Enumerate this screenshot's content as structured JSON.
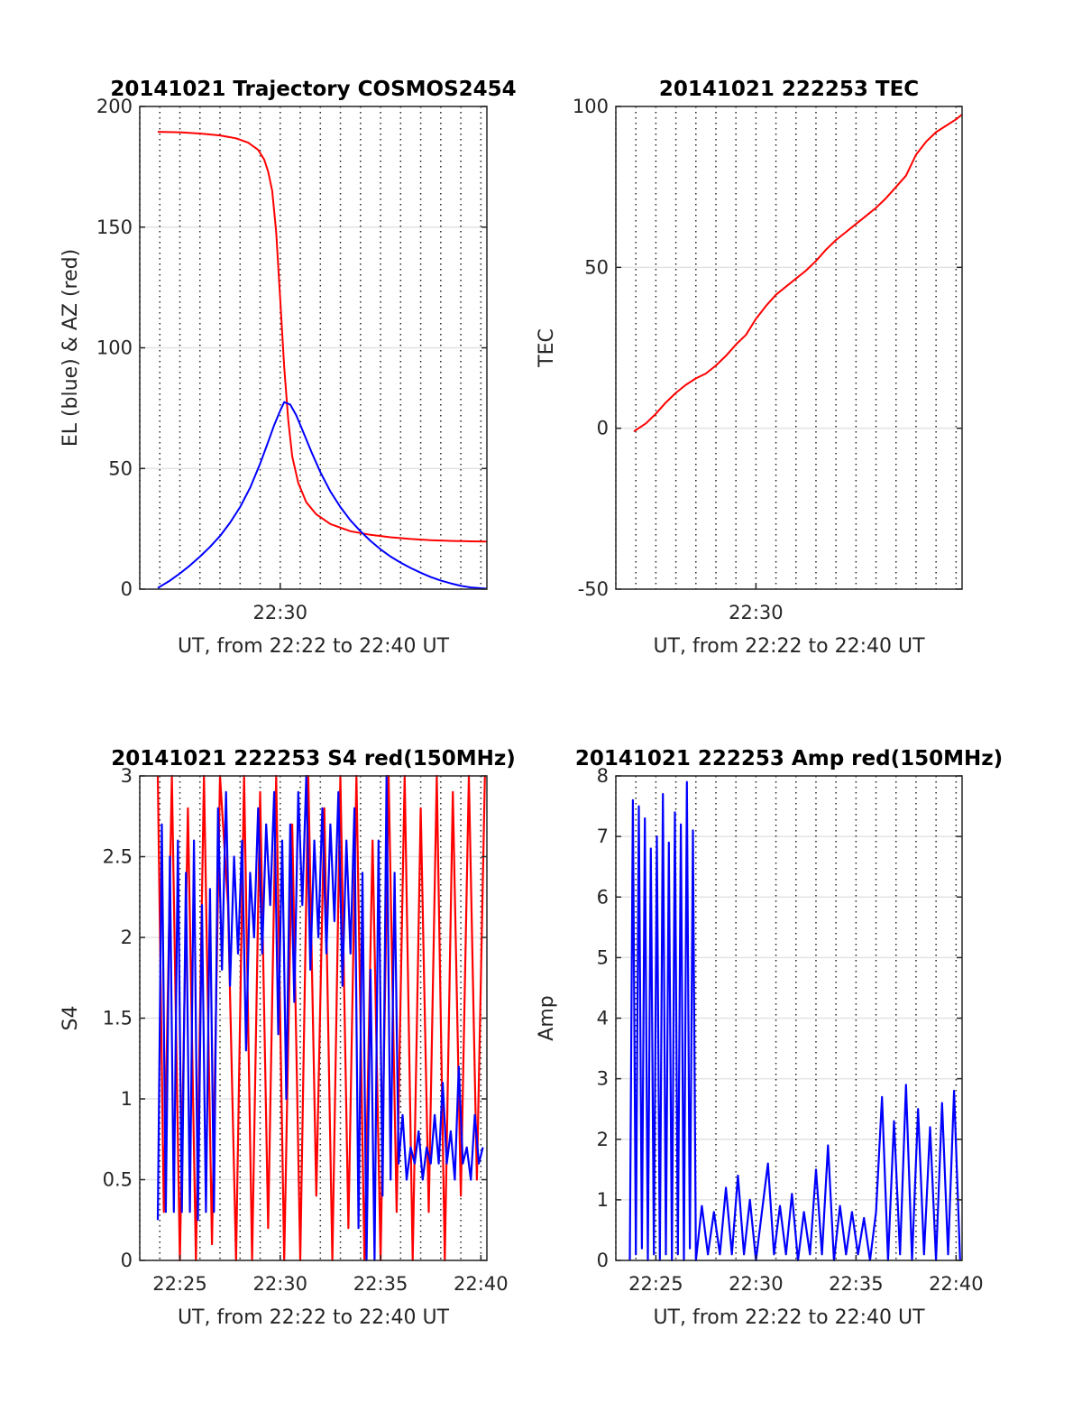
{
  "chart_data": [
    {
      "id": "trajectory",
      "type": "line",
      "title": "20141021 Trajectory COSMOS2454",
      "xlabel": "UT, from 22:22 to 22:40 UT",
      "ylabel": "EL (blue) & AZ (red)",
      "xlim_min": [
        1343.0,
        1360.3
      ],
      "ylim": [
        0,
        200
      ],
      "xticks": [
        {
          "value": 1350,
          "label": "22:30"
        }
      ],
      "yticks": [
        {
          "value": 0,
          "label": "0"
        },
        {
          "value": 50,
          "label": "50"
        },
        {
          "value": 100,
          "label": "100"
        },
        {
          "value": 150,
          "label": "150"
        },
        {
          "value": 200,
          "label": "200"
        }
      ],
      "grid": true,
      "series": [
        {
          "color": "#ff0000",
          "x": [
            1343.9,
            1345.0,
            1346.0,
            1347.0,
            1347.8,
            1348.4,
            1348.9,
            1349.2,
            1349.4,
            1349.6,
            1349.8,
            1350.0,
            1350.2,
            1350.4,
            1350.6,
            1350.9,
            1351.3,
            1351.8,
            1352.5,
            1353.5,
            1354.5,
            1355.5,
            1356.5,
            1357.5,
            1358.5,
            1359.5,
            1360.3
          ],
          "y": [
            189.5,
            189.3,
            188.8,
            188.0,
            186.8,
            185.0,
            182.0,
            178.0,
            173.0,
            165.0,
            148.0,
            120.0,
            92.0,
            70.0,
            55.0,
            44.0,
            36.0,
            31.0,
            27.0,
            24.0,
            22.5,
            21.5,
            20.8,
            20.3,
            20.0,
            19.8,
            19.7
          ]
        },
        {
          "color": "#0000ff",
          "x": [
            1343.9,
            1344.5,
            1345.0,
            1345.5,
            1346.0,
            1346.5,
            1347.0,
            1347.5,
            1348.0,
            1348.5,
            1349.0,
            1349.4,
            1349.7,
            1350.0,
            1350.2,
            1350.5,
            1350.8,
            1351.2,
            1351.6,
            1352.0,
            1352.5,
            1353.0,
            1353.5,
            1354.0,
            1354.5,
            1355.0,
            1355.5,
            1356.0,
            1356.5,
            1357.0,
            1357.5,
            1358.0,
            1358.5,
            1359.0,
            1359.5,
            1360.3
          ],
          "y": [
            0.5,
            3.5,
            6.5,
            9.8,
            13.5,
            17.5,
            22.0,
            27.5,
            34.0,
            42.0,
            52.0,
            61.0,
            68.0,
            74.0,
            77.5,
            76.5,
            72.0,
            64.0,
            56.0,
            48.5,
            40.5,
            34.0,
            28.5,
            24.0,
            20.0,
            16.5,
            13.5,
            11.0,
            8.8,
            6.8,
            5.0,
            3.6,
            2.4,
            1.4,
            0.7,
            0.2
          ]
        }
      ]
    },
    {
      "id": "tec",
      "type": "line",
      "title": "20141021 222253 TEC",
      "xlabel": "UT, from 22:22 to 22:40 UT",
      "ylabel": "TEC",
      "xlim_min": [
        1343.0,
        1360.3
      ],
      "ylim": [
        -50,
        100
      ],
      "xticks": [
        {
          "value": 1350,
          "label": "22:30"
        }
      ],
      "yticks": [
        {
          "value": -50,
          "label": "-50"
        },
        {
          "value": 0,
          "label": "0"
        },
        {
          "value": 50,
          "label": "50"
        },
        {
          "value": 100,
          "label": "100"
        }
      ],
      "grid": true,
      "series": [
        {
          "color": "#ff0000",
          "x": [
            1343.9,
            1344.5,
            1345.0,
            1345.5,
            1346.0,
            1346.5,
            1347.0,
            1347.5,
            1348.0,
            1348.5,
            1349.0,
            1349.5,
            1350.0,
            1350.5,
            1351.0,
            1351.5,
            1352.0,
            1352.5,
            1353.0,
            1353.5,
            1354.0,
            1354.5,
            1355.0,
            1355.5,
            1356.0,
            1356.5,
            1357.0,
            1357.5,
            1358.0,
            1358.5,
            1359.0,
            1359.5,
            1360.0,
            1360.3
          ],
          "y": [
            -1.0,
            1.5,
            4.5,
            8.0,
            11.0,
            13.5,
            15.5,
            17.0,
            19.5,
            22.5,
            26.0,
            29.0,
            34.0,
            38.0,
            41.5,
            44.0,
            46.5,
            49.0,
            52.0,
            55.5,
            58.5,
            61.0,
            63.5,
            66.0,
            68.5,
            71.5,
            75.0,
            78.5,
            85.0,
            89.0,
            92.0,
            94.0,
            96.0,
            97.5
          ]
        }
      ]
    },
    {
      "id": "s4",
      "type": "line",
      "title": "20141021 222253 S4 red(150MHz)",
      "xlabel": "UT, from 22:22 to 22:40 UT",
      "ylabel": "S4",
      "xlim_min": [
        1343.0,
        1360.3
      ],
      "ylim": [
        0,
        3
      ],
      "xticks": [
        {
          "value": 1345,
          "label": "22:25"
        },
        {
          "value": 1350,
          "label": "22:30"
        },
        {
          "value": 1355,
          "label": "22:35"
        },
        {
          "value": 1360,
          "label": "22:40"
        }
      ],
      "yticks": [
        {
          "value": 0,
          "label": "0"
        },
        {
          "value": 0.5,
          "label": "0.5"
        },
        {
          "value": 1,
          "label": "1"
        },
        {
          "value": 1.5,
          "label": "1.5"
        },
        {
          "value": 2,
          "label": "2"
        },
        {
          "value": 2.5,
          "label": "2.5"
        },
        {
          "value": 3,
          "label": "3"
        }
      ],
      "grid": true,
      "series": [
        {
          "color": "#ff0000",
          "x": [
            1343.9,
            1344.2,
            1344.6,
            1345.0,
            1345.4,
            1345.8,
            1346.2,
            1346.6,
            1347.0,
            1347.4,
            1347.8,
            1348.2,
            1348.6,
            1349.0,
            1349.4,
            1349.8,
            1350.2,
            1350.6,
            1351.0,
            1351.4,
            1351.8,
            1352.2,
            1352.6,
            1353.0,
            1353.4,
            1353.8,
            1354.2,
            1354.6,
            1355.0,
            1355.4,
            1355.8,
            1356.2,
            1356.6,
            1357.0,
            1357.4,
            1357.8,
            1358.2,
            1358.6,
            1359.0,
            1359.4,
            1359.8,
            1360.2
          ],
          "y": [
            3.0,
            0.3,
            3.0,
            0.0,
            2.8,
            0.0,
            3.0,
            0.1,
            3.0,
            2.2,
            0.0,
            3.0,
            0.0,
            2.9,
            0.2,
            3.0,
            0.0,
            2.7,
            0.0,
            3.0,
            0.4,
            2.8,
            0.0,
            3.0,
            0.2,
            3.0,
            0.0,
            2.6,
            0.0,
            3.0,
            0.3,
            3.0,
            0.0,
            2.8,
            0.3,
            3.0,
            0.0,
            2.9,
            0.4,
            3.0,
            0.5,
            3.0
          ]
        },
        {
          "color": "#0000ff",
          "x": [
            1343.9,
            1344.1,
            1344.3,
            1344.5,
            1344.7,
            1344.9,
            1345.1,
            1345.3,
            1345.5,
            1345.7,
            1345.9,
            1346.1,
            1346.3,
            1346.5,
            1346.7,
            1346.9,
            1347.1,
            1347.3,
            1347.5,
            1347.7,
            1347.9,
            1348.1,
            1348.3,
            1348.5,
            1348.7,
            1348.9,
            1349.1,
            1349.3,
            1349.5,
            1349.7,
            1349.9,
            1350.1,
            1350.3,
            1350.5,
            1350.7,
            1350.9,
            1351.1,
            1351.3,
            1351.5,
            1351.7,
            1351.9,
            1352.1,
            1352.3,
            1352.5,
            1352.7,
            1352.9,
            1353.1,
            1353.3,
            1353.5,
            1353.7,
            1353.9,
            1354.1,
            1354.3,
            1354.5,
            1354.7,
            1354.9,
            1355.1,
            1355.3,
            1355.5,
            1355.7,
            1355.9,
            1356.1,
            1356.3,
            1356.5,
            1356.7,
            1356.9,
            1357.1,
            1357.3,
            1357.5,
            1357.7,
            1357.9,
            1358.1,
            1358.3,
            1358.5,
            1358.7,
            1358.9,
            1359.1,
            1359.3,
            1359.5,
            1359.7,
            1359.9,
            1360.1
          ],
          "y": [
            0.25,
            2.7,
            0.3,
            2.5,
            0.3,
            2.6,
            0.3,
            2.4,
            0.3,
            2.6,
            0.25,
            2.2,
            0.3,
            2.3,
            0.3,
            2.8,
            1.8,
            2.9,
            1.7,
            2.5,
            1.9,
            2.6,
            1.3,
            2.4,
            2.0,
            2.8,
            1.9,
            2.7,
            2.2,
            2.9,
            1.4,
            2.6,
            1.0,
            2.7,
            1.6,
            2.9,
            2.2,
            3.0,
            1.8,
            2.6,
            2.0,
            2.8,
            1.9,
            2.7,
            2.1,
            2.9,
            1.7,
            2.6,
            1.9,
            2.8,
            0.2,
            2.4,
            0.0,
            1.8,
            0.0,
            2.6,
            0.4,
            3.0,
            0.5,
            2.4,
            0.6,
            0.9,
            0.5,
            0.7,
            0.6,
            0.8,
            0.5,
            0.7,
            0.6,
            0.9,
            0.6,
            1.1,
            0.6,
            0.8,
            0.5,
            1.2,
            0.6,
            0.7,
            0.5,
            0.9,
            0.6,
            0.7
          ]
        }
      ]
    },
    {
      "id": "amp",
      "type": "line",
      "title": "20141021 222253 Amp red(150MHz)",
      "xlabel": "UT, from 22:22 to 22:40 UT",
      "ylabel": "Amp",
      "xlim_min": [
        1343.0,
        1360.3
      ],
      "ylim": [
        0,
        8
      ],
      "xticks": [
        {
          "value": 1345,
          "label": "22:25"
        },
        {
          "value": 1350,
          "label": "22:30"
        },
        {
          "value": 1355,
          "label": "22:35"
        },
        {
          "value": 1360,
          "label": "22:40"
        }
      ],
      "yticks": [
        {
          "value": 0,
          "label": "0"
        },
        {
          "value": 1,
          "label": "1"
        },
        {
          "value": 2,
          "label": "2"
        },
        {
          "value": 3,
          "label": "3"
        },
        {
          "value": 4,
          "label": "4"
        },
        {
          "value": 5,
          "label": "5"
        },
        {
          "value": 6,
          "label": "6"
        },
        {
          "value": 7,
          "label": "7"
        },
        {
          "value": 8,
          "label": "8"
        }
      ],
      "grid": true,
      "series": [
        {
          "color": "#0000ff",
          "x": [
            1343.7,
            1343.85,
            1344.0,
            1344.15,
            1344.3,
            1344.45,
            1344.6,
            1344.75,
            1344.9,
            1345.05,
            1345.2,
            1345.35,
            1345.5,
            1345.65,
            1345.8,
            1345.95,
            1346.1,
            1346.25,
            1346.4,
            1346.55,
            1346.7,
            1346.85,
            1347.0,
            1347.3,
            1347.6,
            1347.9,
            1348.2,
            1348.5,
            1348.8,
            1349.1,
            1349.4,
            1349.7,
            1350.0,
            1350.3,
            1350.6,
            1350.9,
            1351.2,
            1351.5,
            1351.8,
            1352.1,
            1352.4,
            1352.7,
            1353.0,
            1353.3,
            1353.6,
            1353.9,
            1354.2,
            1354.5,
            1354.8,
            1355.1,
            1355.4,
            1355.7,
            1356.0,
            1356.3,
            1356.6,
            1356.9,
            1357.2,
            1357.5,
            1357.8,
            1358.1,
            1358.4,
            1358.7,
            1359.0,
            1359.3,
            1359.6,
            1359.9,
            1360.2
          ],
          "y": [
            0.0,
            7.6,
            0.1,
            7.5,
            0.2,
            7.3,
            0.0,
            6.8,
            0.1,
            7.0,
            0.0,
            7.7,
            0.1,
            6.9,
            0.0,
            7.4,
            0.1,
            7.2,
            0.0,
            7.9,
            0.2,
            7.1,
            0.0,
            0.9,
            0.1,
            0.8,
            0.1,
            1.2,
            0.1,
            1.4,
            0.1,
            1.0,
            0.0,
            0.8,
            1.6,
            0.1,
            0.9,
            0.1,
            1.1,
            0.0,
            0.8,
            0.1,
            1.5,
            0.1,
            1.9,
            0.0,
            0.9,
            0.1,
            0.8,
            0.1,
            0.7,
            0.0,
            0.8,
            2.7,
            0.0,
            2.3,
            0.1,
            2.9,
            0.0,
            2.5,
            0.1,
            2.2,
            0.0,
            2.6,
            0.1,
            2.8,
            0.0
          ]
        }
      ]
    }
  ]
}
